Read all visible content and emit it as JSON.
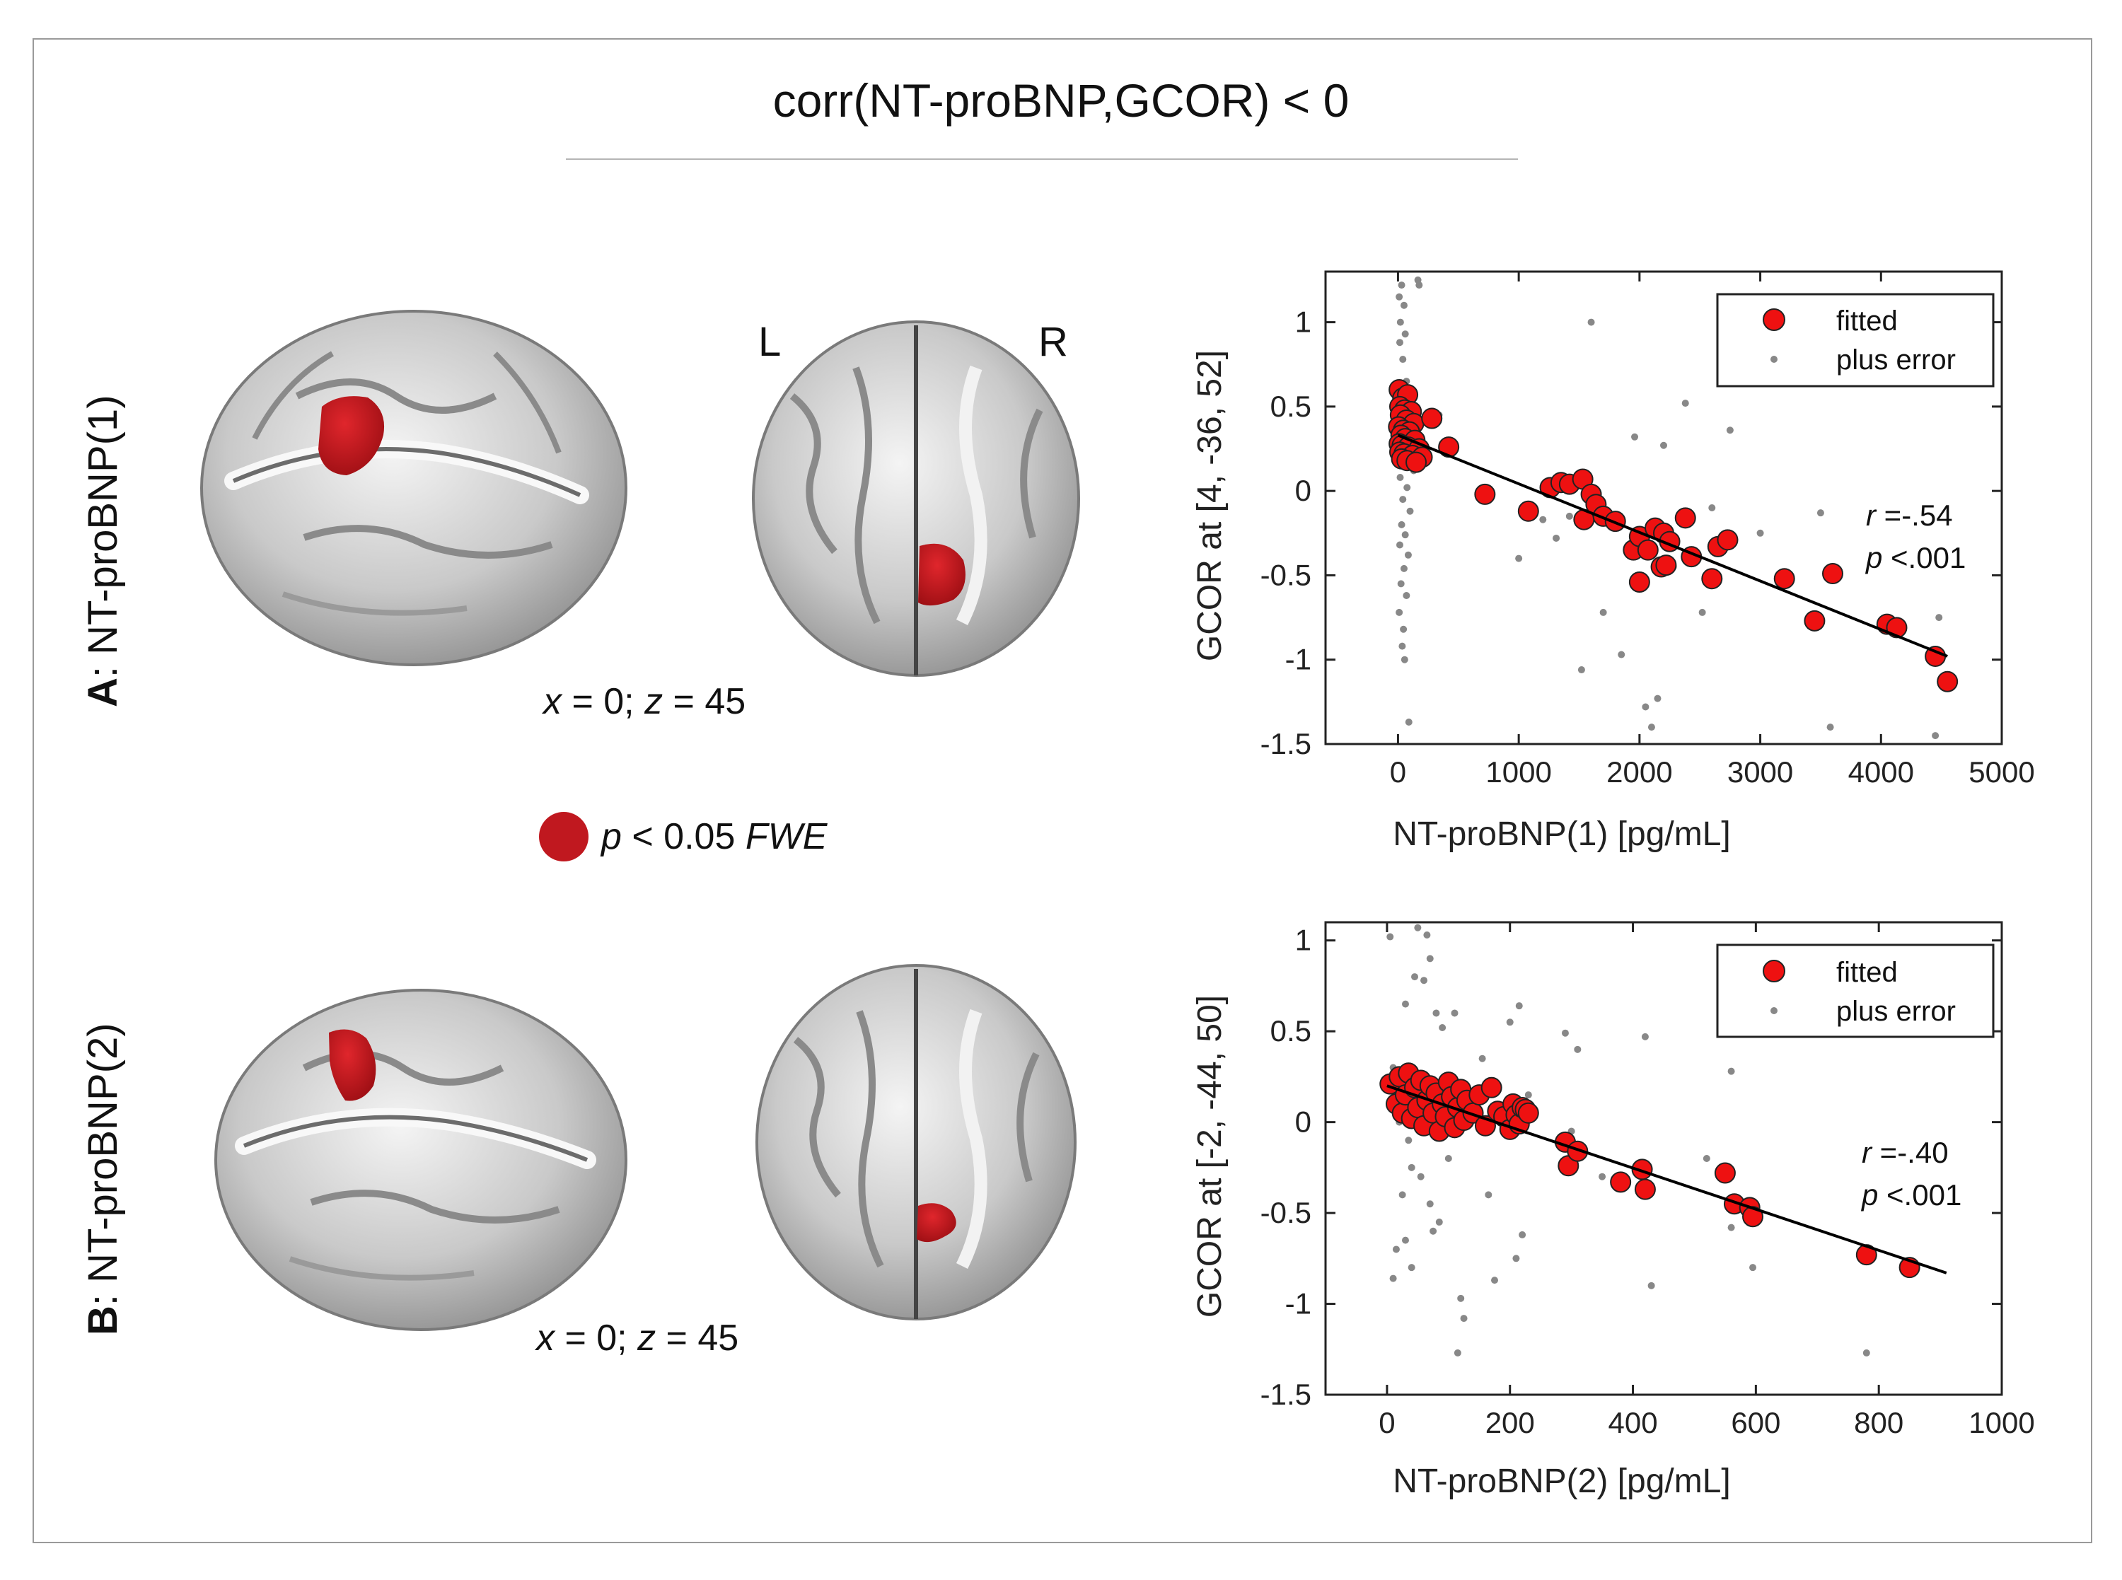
{
  "figure": {
    "title": "corr(NT-proBNP,GCOR) < 0",
    "legend_significance": {
      "symbol_color": "#c0181f",
      "label_p": "p",
      "label_rest": " < 0.05 ",
      "label_fwe": "FWE"
    },
    "hemisphere_labels": {
      "left": "L",
      "right": "R"
    }
  },
  "panels": [
    {
      "letter": "A",
      "name": ": NT-proBNP(1)",
      "coords": {
        "x_label": "x",
        "x_val": " = 0; ",
        "z_label": "z",
        "z_val": " = 45"
      }
    },
    {
      "letter": "B",
      "name": ": NT-proBNP(2)",
      "coords": {
        "x_label": "x",
        "x_val": " = 0; ",
        "z_label": "z",
        "z_val": " = 45"
      }
    }
  ],
  "chart_data": [
    {
      "type": "scatter",
      "xlabel": "NT-proBNP(1) [pg/mL]",
      "ylabel": "GCOR at [4, -36, 52]",
      "xlim": [
        -600,
        5000
      ],
      "ylim": [
        -1.5,
        1.3
      ],
      "xticks": [
        0,
        1000,
        2000,
        3000,
        4000,
        5000
      ],
      "yticks": [
        -1.5,
        -1,
        -0.5,
        0,
        0.5,
        1
      ],
      "ytick_labels": [
        "-1.5",
        "-1",
        "-0.5",
        "0",
        "0.5",
        "1"
      ],
      "legend": {
        "fitted": "fitted",
        "plus_error": "plus error",
        "position": "top-right"
      },
      "stats": {
        "r_label": "r",
        "r_value": " =-.54",
        "p_label": "p",
        "p_value": " <.001"
      },
      "colors": {
        "fitted": "#ee1111",
        "error": "#888888",
        "line": "#000000"
      },
      "fit_line": {
        "x": [
          0,
          4550
        ],
        "y": [
          0.33,
          -0.98
        ]
      },
      "fitted_points": [
        {
          "x": 10,
          "y": 0.6
        },
        {
          "x": 40,
          "y": 0.55
        },
        {
          "x": 80,
          "y": 0.57
        },
        {
          "x": 15,
          "y": 0.5
        },
        {
          "x": 55,
          "y": 0.48
        },
        {
          "x": 110,
          "y": 0.47
        },
        {
          "x": 20,
          "y": 0.45
        },
        {
          "x": 70,
          "y": 0.42
        },
        {
          "x": 130,
          "y": 0.4
        },
        {
          "x": 5,
          "y": 0.38
        },
        {
          "x": 45,
          "y": 0.36
        },
        {
          "x": 95,
          "y": 0.35
        },
        {
          "x": 25,
          "y": 0.33
        },
        {
          "x": 60,
          "y": 0.31
        },
        {
          "x": 140,
          "y": 0.3
        },
        {
          "x": 10,
          "y": 0.28
        },
        {
          "x": 35,
          "y": 0.27
        },
        {
          "x": 85,
          "y": 0.26
        },
        {
          "x": 175,
          "y": 0.25
        },
        {
          "x": 15,
          "y": 0.23
        },
        {
          "x": 50,
          "y": 0.22
        },
        {
          "x": 120,
          "y": 0.21
        },
        {
          "x": 200,
          "y": 0.2
        },
        {
          "x": 30,
          "y": 0.19
        },
        {
          "x": 75,
          "y": 0.18
        },
        {
          "x": 150,
          "y": 0.17
        },
        {
          "x": 280,
          "y": 0.43
        },
        {
          "x": 420,
          "y": 0.26
        },
        {
          "x": 720,
          "y": -0.02
        },
        {
          "x": 1080,
          "y": -0.12
        },
        {
          "x": 1260,
          "y": 0.02
        },
        {
          "x": 1350,
          "y": 0.05
        },
        {
          "x": 1420,
          "y": 0.04
        },
        {
          "x": 1530,
          "y": 0.07
        },
        {
          "x": 1600,
          "y": -0.02
        },
        {
          "x": 1540,
          "y": -0.17
        },
        {
          "x": 1640,
          "y": -0.08
        },
        {
          "x": 1700,
          "y": -0.15
        },
        {
          "x": 1800,
          "y": -0.18
        },
        {
          "x": 1950,
          "y": -0.35
        },
        {
          "x": 2000,
          "y": -0.27
        },
        {
          "x": 2070,
          "y": -0.35
        },
        {
          "x": 2130,
          "y": -0.22
        },
        {
          "x": 2200,
          "y": -0.25
        },
        {
          "x": 2250,
          "y": -0.3
        },
        {
          "x": 2180,
          "y": -0.45
        },
        {
          "x": 2220,
          "y": -0.44
        },
        {
          "x": 2000,
          "y": -0.54
        },
        {
          "x": 2380,
          "y": -0.16
        },
        {
          "x": 2430,
          "y": -0.39
        },
        {
          "x": 2600,
          "y": -0.52
        },
        {
          "x": 2650,
          "y": -0.33
        },
        {
          "x": 2730,
          "y": -0.29
        },
        {
          "x": 3200,
          "y": -0.52
        },
        {
          "x": 3450,
          "y": -0.77
        },
        {
          "x": 3600,
          "y": -0.49
        },
        {
          "x": 4050,
          "y": -0.79
        },
        {
          "x": 4130,
          "y": -0.81
        },
        {
          "x": 4450,
          "y": -0.98
        },
        {
          "x": 4550,
          "y": -1.13
        }
      ],
      "error_points": [
        {
          "x": 10,
          "y": 1.15
        },
        {
          "x": 30,
          "y": 1.22
        },
        {
          "x": 50,
          "y": 1.1
        },
        {
          "x": 20,
          "y": 1.0
        },
        {
          "x": 60,
          "y": 0.93
        },
        {
          "x": 15,
          "y": 0.88
        },
        {
          "x": 40,
          "y": 0.78
        },
        {
          "x": 70,
          "y": 0.65
        },
        {
          "x": 25,
          "y": 0.6
        },
        {
          "x": 80,
          "y": 0.55
        },
        {
          "x": 5,
          "y": 0.52
        },
        {
          "x": 35,
          "y": 0.47
        },
        {
          "x": 90,
          "y": 0.44
        },
        {
          "x": 45,
          "y": 0.4
        },
        {
          "x": 12,
          "y": 0.35
        },
        {
          "x": 65,
          "y": 0.3
        },
        {
          "x": 110,
          "y": 0.28
        },
        {
          "x": 22,
          "y": 0.24
        },
        {
          "x": 55,
          "y": 0.2
        },
        {
          "x": 95,
          "y": 0.16
        },
        {
          "x": 130,
          "y": 0.12
        },
        {
          "x": 18,
          "y": 0.08
        },
        {
          "x": 75,
          "y": 0.02
        },
        {
          "x": 40,
          "y": -0.05
        },
        {
          "x": 100,
          "y": -0.12
        },
        {
          "x": 30,
          "y": -0.2
        },
        {
          "x": 60,
          "y": -0.26
        },
        {
          "x": 15,
          "y": -0.32
        },
        {
          "x": 85,
          "y": -0.38
        },
        {
          "x": 50,
          "y": -0.46
        },
        {
          "x": 25,
          "y": -0.55
        },
        {
          "x": 70,
          "y": -0.62
        },
        {
          "x": 10,
          "y": -0.72
        },
        {
          "x": 45,
          "y": -0.82
        },
        {
          "x": 35,
          "y": -0.92
        },
        {
          "x": 55,
          "y": -1.0
        },
        {
          "x": 90,
          "y": -1.37
        },
        {
          "x": 165,
          "y": 1.25
        },
        {
          "x": 175,
          "y": 1.22
        },
        {
          "x": 340,
          "y": 0.45
        },
        {
          "x": 1200,
          "y": -0.17
        },
        {
          "x": 1420,
          "y": -0.15
        },
        {
          "x": 1600,
          "y": 1.0
        },
        {
          "x": 1310,
          "y": -0.28
        },
        {
          "x": 1520,
          "y": -1.06
        },
        {
          "x": 1850,
          "y": -0.97
        },
        {
          "x": 1960,
          "y": 0.32
        },
        {
          "x": 2050,
          "y": -1.28
        },
        {
          "x": 2150,
          "y": -1.23
        },
        {
          "x": 2100,
          "y": -1.4
        },
        {
          "x": 2280,
          "y": -0.45
        },
        {
          "x": 2200,
          "y": 0.27
        },
        {
          "x": 2380,
          "y": 0.52
        },
        {
          "x": 2750,
          "y": 0.36
        },
        {
          "x": 2520,
          "y": -0.72
        },
        {
          "x": 3500,
          "y": -0.13
        },
        {
          "x": 3580,
          "y": -1.4
        },
        {
          "x": 1700,
          "y": -0.72
        },
        {
          "x": 4450,
          "y": -1.45
        },
        {
          "x": 4480,
          "y": -0.75
        },
        {
          "x": 3000,
          "y": -0.25
        },
        {
          "x": 2600,
          "y": -0.1
        },
        {
          "x": 1000,
          "y": -0.4
        }
      ]
    },
    {
      "type": "scatter",
      "xlabel": "NT-proBNP(2) [pg/mL]",
      "ylabel": "GCOR at [-2, -44, 50]",
      "xlim": [
        -100,
        1000
      ],
      "ylim": [
        -1.5,
        1.1
      ],
      "xticks": [
        0,
        200,
        400,
        600,
        800,
        1000
      ],
      "yticks": [
        -1.5,
        -1,
        -0.5,
        0,
        0.5,
        1
      ],
      "ytick_labels": [
        "-1.5",
        "-1",
        "-0.5",
        "0",
        "0.5",
        "1"
      ],
      "legend": {
        "fitted": "fitted",
        "plus_error": "plus error",
        "position": "top-right"
      },
      "stats": {
        "r_label": "r",
        "r_value": " =-.40",
        "p_label": "p",
        "p_value": " <.001"
      },
      "colors": {
        "fitted": "#ee1111",
        "error": "#888888",
        "line": "#000000"
      },
      "fit_line": {
        "x": [
          0,
          910
        ],
        "y": [
          0.2,
          -0.83
        ]
      },
      "fitted_points": [
        {
          "x": 5,
          "y": 0.21
        },
        {
          "x": 15,
          "y": 0.1
        },
        {
          "x": 20,
          "y": 0.25
        },
        {
          "x": 25,
          "y": 0.05
        },
        {
          "x": 30,
          "y": 0.15
        },
        {
          "x": 35,
          "y": 0.27
        },
        {
          "x": 40,
          "y": 0.02
        },
        {
          "x": 45,
          "y": 0.19
        },
        {
          "x": 50,
          "y": 0.08
        },
        {
          "x": 55,
          "y": 0.23
        },
        {
          "x": 60,
          "y": -0.02
        },
        {
          "x": 65,
          "y": 0.12
        },
        {
          "x": 70,
          "y": 0.2
        },
        {
          "x": 75,
          "y": 0.05
        },
        {
          "x": 80,
          "y": 0.16
        },
        {
          "x": 85,
          "y": -0.05
        },
        {
          "x": 90,
          "y": 0.1
        },
        {
          "x": 95,
          "y": 0.03
        },
        {
          "x": 100,
          "y": 0.22
        },
        {
          "x": 105,
          "y": 0.14
        },
        {
          "x": 110,
          "y": -0.03
        },
        {
          "x": 115,
          "y": 0.08
        },
        {
          "x": 120,
          "y": 0.18
        },
        {
          "x": 125,
          "y": 0.01
        },
        {
          "x": 130,
          "y": 0.12
        },
        {
          "x": 140,
          "y": 0.05
        },
        {
          "x": 150,
          "y": 0.15
        },
        {
          "x": 160,
          "y": -0.02
        },
        {
          "x": 170,
          "y": 0.19
        },
        {
          "x": 180,
          "y": 0.06
        },
        {
          "x": 190,
          "y": 0.03
        },
        {
          "x": 200,
          "y": -0.04
        },
        {
          "x": 205,
          "y": 0.1
        },
        {
          "x": 210,
          "y": 0.04
        },
        {
          "x": 215,
          "y": -0.01
        },
        {
          "x": 220,
          "y": 0.08
        },
        {
          "x": 225,
          "y": 0.07
        },
        {
          "x": 230,
          "y": 0.05
        },
        {
          "x": 290,
          "y": -0.11
        },
        {
          "x": 295,
          "y": -0.24
        },
        {
          "x": 310,
          "y": -0.16
        },
        {
          "x": 380,
          "y": -0.33
        },
        {
          "x": 415,
          "y": -0.26
        },
        {
          "x": 420,
          "y": -0.37
        },
        {
          "x": 550,
          "y": -0.28
        },
        {
          "x": 565,
          "y": -0.45
        },
        {
          "x": 590,
          "y": -0.47
        },
        {
          "x": 595,
          "y": -0.52
        },
        {
          "x": 780,
          "y": -0.73
        },
        {
          "x": 850,
          "y": -0.8
        }
      ],
      "error_points": [
        {
          "x": 5,
          "y": 1.02
        },
        {
          "x": 50,
          "y": 1.07
        },
        {
          "x": 65,
          "y": 1.03
        },
        {
          "x": 70,
          "y": 0.9
        },
        {
          "x": 45,
          "y": 0.8
        },
        {
          "x": 60,
          "y": 0.78
        },
        {
          "x": 80,
          "y": 0.6
        },
        {
          "x": 30,
          "y": 0.65
        },
        {
          "x": 90,
          "y": 0.52
        },
        {
          "x": 110,
          "y": 0.6
        },
        {
          "x": 155,
          "y": 0.35
        },
        {
          "x": 215,
          "y": 0.64
        },
        {
          "x": 200,
          "y": 0.55
        },
        {
          "x": 290,
          "y": 0.49
        },
        {
          "x": 310,
          "y": 0.4
        },
        {
          "x": 420,
          "y": 0.47
        },
        {
          "x": 10,
          "y": 0.3
        },
        {
          "x": 20,
          "y": 0.0
        },
        {
          "x": 35,
          "y": -0.1
        },
        {
          "x": 40,
          "y": -0.25
        },
        {
          "x": 55,
          "y": -0.3
        },
        {
          "x": 25,
          "y": -0.4
        },
        {
          "x": 70,
          "y": -0.45
        },
        {
          "x": 85,
          "y": -0.55
        },
        {
          "x": 30,
          "y": -0.65
        },
        {
          "x": 15,
          "y": -0.7
        },
        {
          "x": 75,
          "y": -0.6
        },
        {
          "x": 40,
          "y": -0.8
        },
        {
          "x": 10,
          "y": -0.86
        },
        {
          "x": 120,
          "y": -0.97
        },
        {
          "x": 125,
          "y": -1.08
        },
        {
          "x": 115,
          "y": -1.27
        },
        {
          "x": 175,
          "y": -0.87
        },
        {
          "x": 210,
          "y": -0.75
        },
        {
          "x": 220,
          "y": -0.62
        },
        {
          "x": 165,
          "y": -0.4
        },
        {
          "x": 100,
          "y": -0.2
        },
        {
          "x": 135,
          "y": 0.05
        },
        {
          "x": 180,
          "y": 0.2
        },
        {
          "x": 230,
          "y": 0.15
        },
        {
          "x": 300,
          "y": -0.05
        },
        {
          "x": 350,
          "y": -0.3
        },
        {
          "x": 430,
          "y": -0.9
        },
        {
          "x": 520,
          "y": -0.2
        },
        {
          "x": 565,
          "y": -0.45
        },
        {
          "x": 595,
          "y": -0.8
        },
        {
          "x": 560,
          "y": 0.28
        },
        {
          "x": 780,
          "y": -1.27
        },
        {
          "x": 560,
          "y": -0.58
        }
      ]
    }
  ]
}
